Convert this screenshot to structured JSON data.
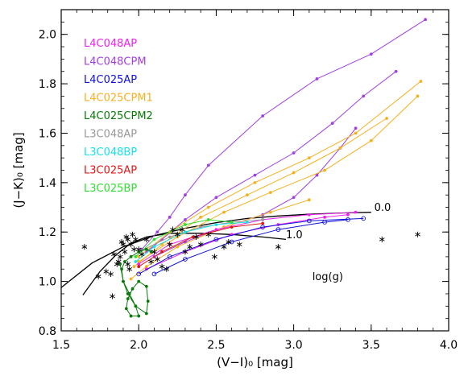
{
  "chart_data": {
    "type": "line",
    "xlabel": "(V−I)₀  [mag]",
    "ylabel": "(J−K)₀  [mag]",
    "xlim": [
      1.5,
      4.0
    ],
    "ylim": [
      0.8,
      2.1
    ],
    "xticks": [
      "1.5",
      "2.0",
      "2.5",
      "3.0",
      "3.5",
      "4.0"
    ],
    "yticks": [
      "0.8",
      "1.0",
      "1.2",
      "1.4",
      "1.6",
      "1.8",
      "2.0"
    ],
    "legend_position": "top-left",
    "legend": [
      {
        "label": "L4C048AP",
        "color": "#ee22ee"
      },
      {
        "label": "L4C048CPM",
        "color": "#a040e0"
      },
      {
        "label": "L4C025AP",
        "color": "#1010dd"
      },
      {
        "label": "L4C025CPM1",
        "color": "#f5b020"
      },
      {
        "label": "L4C025CPM2",
        "color": "#0a7a0a"
      },
      {
        "label": "L3C048AP",
        "color": "#999999"
      },
      {
        "label": "L3C048BP",
        "color": "#18e0e8"
      },
      {
        "label": "L3C025AP",
        "color": "#e01818"
      },
      {
        "label": "L3C025BP",
        "color": "#30dd30"
      }
    ],
    "annotations": [
      {
        "text": "0.0",
        "x": 3.52,
        "y": 1.285
      },
      {
        "text": "1.0",
        "x": 2.95,
        "y": 1.175
      },
      {
        "text": "log(g)",
        "x": 3.12,
        "y": 1.005
      }
    ],
    "reference_lines": [
      {
        "name": "log(g) = 0.0",
        "color": "#000000",
        "x": [
          1.5,
          1.7,
          1.9,
          2.1,
          2.3,
          2.5,
          2.7,
          2.9,
          3.1,
          3.3,
          3.5
        ],
        "y": [
          0.975,
          1.075,
          1.14,
          1.185,
          1.215,
          1.238,
          1.255,
          1.265,
          1.272,
          1.277,
          1.28
        ]
      },
      {
        "name": "log(g) = 1.0",
        "color": "#000000",
        "x": [
          1.64,
          1.75,
          1.85,
          1.95,
          2.05,
          2.2,
          2.4,
          2.6,
          2.8,
          2.95
        ],
        "y": [
          0.945,
          1.04,
          1.105,
          1.155,
          1.18,
          1.195,
          1.195,
          1.19,
          1.18,
          1.17
        ]
      }
    ],
    "series": [
      {
        "name": "L4C048CPM",
        "color": "#a040e0",
        "marker": "dot",
        "tracks": [
          {
            "x": [
              2.02,
              2.12,
              2.2,
              2.3,
              2.45,
              2.8,
              3.15,
              3.5,
              3.85
            ],
            "y": [
              1.13,
              1.2,
              1.26,
              1.35,
              1.47,
              1.67,
              1.82,
              1.92,
              2.06
            ]
          },
          {
            "x": [
              2.05,
              2.15,
              2.3,
              2.5,
              2.75,
              3.0,
              3.25,
              3.45,
              3.66
            ],
            "y": [
              1.12,
              1.17,
              1.25,
              1.34,
              1.43,
              1.52,
              1.64,
              1.75,
              1.85
            ]
          },
          {
            "x": [
              2.1,
              2.3,
              2.55,
              2.8,
              3.0,
              3.15,
              3.3,
              3.4
            ],
            "y": [
              1.1,
              1.16,
              1.22,
              1.27,
              1.34,
              1.43,
              1.54,
              1.62
            ]
          }
        ]
      },
      {
        "name": "L4C025CPM1",
        "color": "#f5b020",
        "marker": "dot",
        "tracks": [
          {
            "x": [
              2.0,
              2.2,
              2.45,
              2.75,
              3.1,
              3.4,
              3.82
            ],
            "y": [
              1.1,
              1.2,
              1.3,
              1.4,
              1.5,
              1.6,
              1.81
            ]
          },
          {
            "x": [
              2.0,
              2.25,
              2.55,
              2.85,
              3.2,
              3.5,
              3.8
            ],
            "y": [
              1.08,
              1.18,
              1.28,
              1.36,
              1.45,
              1.57,
              1.75
            ]
          },
          {
            "x": [
              1.97,
              2.15,
              2.4,
              2.7,
              3.0,
              3.3,
              3.6
            ],
            "y": [
              1.06,
              1.15,
              1.26,
              1.35,
              1.44,
              1.54,
              1.66
            ]
          },
          {
            "x": [
              1.95,
              2.05,
              2.25,
              2.55,
              2.85,
              3.1
            ],
            "y": [
              1.01,
              1.06,
              1.14,
              1.22,
              1.28,
              1.33
            ]
          }
        ]
      },
      {
        "name": "L4C048AP",
        "color": "#ee22ee",
        "marker": "dot",
        "tracks": [
          {
            "x": [
              2.0,
              2.2,
              2.5,
              2.8,
              3.1,
              3.4
            ],
            "y": [
              1.07,
              1.15,
              1.21,
              1.25,
              1.27,
              1.28
            ]
          },
          {
            "x": [
              2.05,
              2.3,
              2.6,
              2.9,
              3.2,
              3.35
            ],
            "y": [
              1.05,
              1.12,
              1.19,
              1.23,
              1.26,
              1.27
            ]
          }
        ]
      },
      {
        "name": "L4C025AP",
        "color": "#1010dd",
        "marker": "circle",
        "tracks": [
          {
            "x": [
              2.0,
              2.2,
              2.5,
              2.8,
              3.1,
              3.45
            ],
            "y": [
              1.03,
              1.1,
              1.17,
              1.22,
              1.245,
              1.255
            ]
          },
          {
            "x": [
              2.1,
              2.3,
              2.6,
              2.9,
              3.2,
              3.35
            ],
            "y": [
              1.03,
              1.09,
              1.16,
              1.21,
              1.24,
              1.25
            ]
          }
        ]
      },
      {
        "name": "L3C048AP",
        "color": "#999999",
        "marker": "dot",
        "tracks": [
          {
            "x": [
              2.0,
              2.2,
              2.4,
              2.6,
              2.8
            ],
            "y": [
              1.12,
              1.18,
              1.22,
              1.24,
              1.25
            ]
          }
        ]
      },
      {
        "name": "L3C048BP",
        "color": "#18e0e8",
        "marker": "dot",
        "tracks": [
          {
            "x": [
              1.98,
              2.1,
              2.3,
              2.5,
              2.7
            ],
            "y": [
              1.08,
              1.14,
              1.2,
              1.23,
              1.24
            ]
          }
        ]
      },
      {
        "name": "L3C025AP",
        "color": "#e01818",
        "marker": "dot",
        "tracks": [
          {
            "x": [
              2.0,
              2.15,
              2.35,
              2.6,
              2.8
            ],
            "y": [
              1.06,
              1.12,
              1.18,
              1.22,
              1.235
            ]
          }
        ]
      },
      {
        "name": "L3C025BP",
        "color": "#30dd30",
        "marker": "dot",
        "tracks": [
          {
            "x": [
              1.98,
              2.1,
              2.3,
              2.45,
              2.6
            ],
            "y": [
              1.1,
              1.17,
              1.23,
              1.25,
              1.24
            ]
          }
        ]
      },
      {
        "name": "L4C025CPM2",
        "color": "#0a7a0a",
        "marker": "dot",
        "tracks": [
          {
            "x": [
              1.88,
              1.9,
              1.93,
              1.98,
              2.05,
              2.06,
              2.05,
              2.0,
              1.96,
              1.93,
              1.92,
              1.95,
              2.0,
              1.98,
              1.94,
              1.9,
              1.89,
              1.91,
              1.95,
              2.0,
              2.05,
              2.08
            ],
            "y": [
              1.07,
              1.0,
              0.95,
              0.9,
              0.87,
              0.92,
              0.98,
              1.0,
              0.97,
              0.93,
              0.89,
              0.86,
              0.86,
              0.9,
              0.95,
              1.0,
              1.05,
              1.08,
              1.1,
              1.12,
              1.13,
              1.12
            ]
          }
        ]
      }
    ],
    "observations": {
      "name": "stars",
      "marker": "asterisk",
      "color": "#000000",
      "points": [
        [
          1.65,
          1.14
        ],
        [
          1.74,
          1.02
        ],
        [
          1.79,
          1.04
        ],
        [
          1.82,
          1.03
        ],
        [
          1.83,
          0.94
        ],
        [
          1.84,
          1.11
        ],
        [
          1.86,
          1.07
        ],
        [
          1.87,
          1.08
        ],
        [
          1.88,
          1.1
        ],
        [
          1.89,
          1.16
        ],
        [
          1.9,
          1.15
        ],
        [
          1.91,
          1.12
        ],
        [
          1.92,
          1.18
        ],
        [
          1.93,
          1.17
        ],
        [
          1.93,
          1.07
        ],
        [
          1.94,
          1.05
        ],
        [
          1.95,
          1.15
        ],
        [
          1.96,
          1.19
        ],
        [
          1.97,
          1.13
        ],
        [
          1.98,
          1.17
        ],
        [
          2.0,
          1.13
        ],
        [
          2.02,
          1.11
        ],
        [
          2.05,
          1.17
        ],
        [
          2.08,
          1.08
        ],
        [
          2.1,
          1.12
        ],
        [
          2.12,
          1.09
        ],
        [
          2.15,
          1.06
        ],
        [
          2.18,
          1.05
        ],
        [
          2.2,
          1.15
        ],
        [
          2.22,
          1.21
        ],
        [
          2.25,
          1.19
        ],
        [
          2.28,
          1.21
        ],
        [
          2.3,
          1.12
        ],
        [
          2.33,
          1.14
        ],
        [
          2.37,
          1.18
        ],
        [
          2.4,
          1.15
        ],
        [
          2.45,
          1.19
        ],
        [
          2.49,
          1.1
        ],
        [
          2.55,
          1.14
        ],
        [
          2.58,
          1.16
        ],
        [
          2.65,
          1.15
        ],
        [
          2.9,
          1.14
        ],
        [
          3.57,
          1.17
        ],
        [
          3.8,
          1.19
        ]
      ]
    }
  }
}
